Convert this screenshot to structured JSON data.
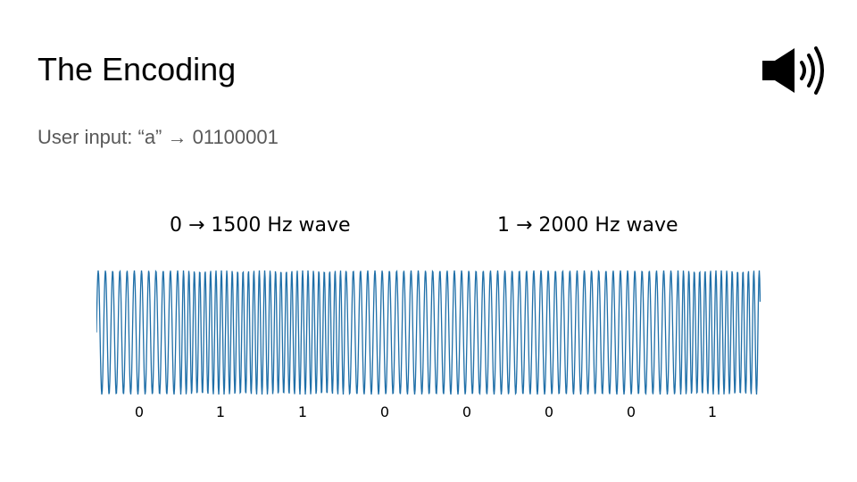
{
  "slide": {
    "title": "The Encoding",
    "subtitle": "User input: “a” → 01100001"
  },
  "legend": {
    "zero_label": "0 → 1500 Hz wave",
    "one_label": "1 → 2000 Hz wave"
  },
  "icons": {
    "speaker": "speaker-icon"
  },
  "chart_data": {
    "type": "line",
    "bits": [
      "0",
      "1",
      "1",
      "0",
      "0",
      "0",
      "0",
      "1"
    ],
    "frequencies_hz": {
      "0": 1500,
      "1": 2000
    },
    "amplitude_range": [
      -1,
      1
    ],
    "grid": false,
    "line_color": "#1f6fa8"
  }
}
